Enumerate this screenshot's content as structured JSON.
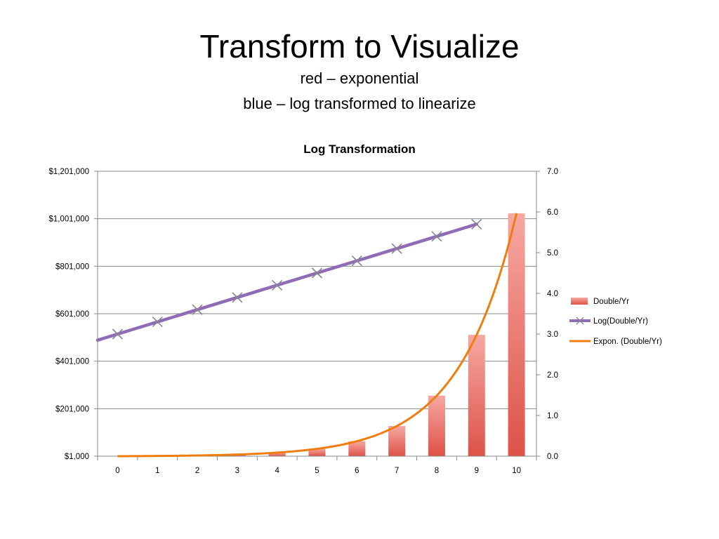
{
  "slide": {
    "title": "Transform to Visualize",
    "subtitle_1": "red – exponential",
    "subtitle_2": "blue – log transformed to linearize"
  },
  "chart_data": {
    "type": "bar",
    "title": "Log Transformation",
    "categories": [
      "0",
      "1",
      "2",
      "3",
      "4",
      "5",
      "6",
      "7",
      "8",
      "9",
      "10"
    ],
    "y_left": {
      "min": 1000,
      "max": 1201000,
      "step": 200000,
      "tick_labels": [
        "$1,000",
        "$201,000",
        "$401,000",
        "$601,000",
        "$801,000",
        "$1,001,000",
        "$1,201,000"
      ]
    },
    "y_right": {
      "min": 0,
      "max": 7,
      "step": 1,
      "tick_labels": [
        "0.0",
        "1.0",
        "2.0",
        "3.0",
        "4.0",
        "5.0",
        "6.0",
        "7.0"
      ]
    },
    "series": [
      {
        "name": "Double/Yr",
        "type": "bar",
        "axis": "left",
        "color": "#e35a4f",
        "values": [
          1000,
          2000,
          4000,
          8000,
          16000,
          32000,
          64000,
          128000,
          256000,
          512000,
          1024000
        ]
      },
      {
        "name": "Log(Double/Yr)",
        "type": "line",
        "axis": "right",
        "color": "#8e6cb6",
        "marker": "x",
        "values": [
          3.0,
          3.3,
          3.6,
          3.9,
          4.2,
          4.5,
          4.8,
          5.1,
          5.4,
          5.7,
          6.0
        ]
      },
      {
        "name": "Expon. (Double/Yr)",
        "type": "trendline",
        "axis": "left",
        "color": "#ef7d0f",
        "start_value": 1000,
        "growth_factor": 2
      }
    ],
    "grid": true,
    "legend_position": "right"
  }
}
